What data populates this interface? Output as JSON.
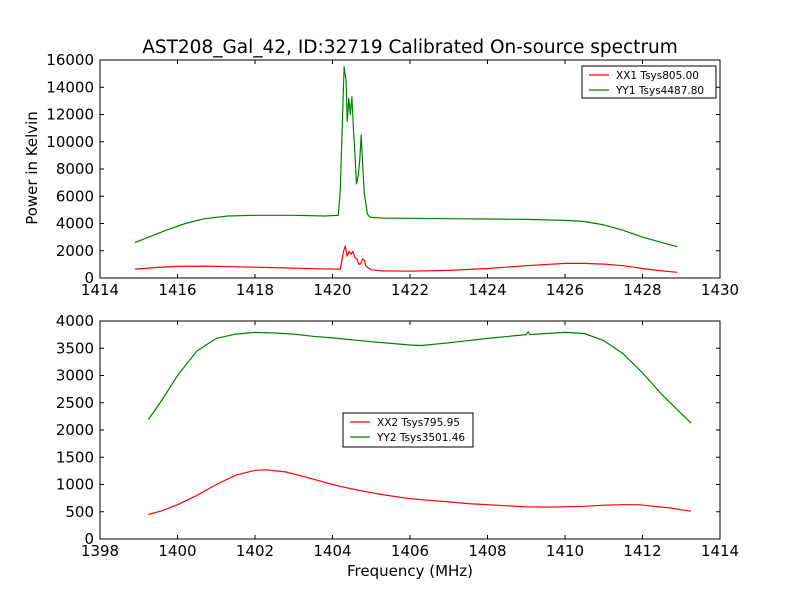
{
  "figure": {
    "title": "AST208_Gal_42, ID:32719 Calibrated On-source spectrum",
    "ylabel": "Power in Kelvin",
    "xlabel": "Frequency (MHz)"
  },
  "chart_data": [
    {
      "type": "line",
      "title": "AST208_Gal_42, ID:32719 Calibrated On-source spectrum",
      "xlabel": "",
      "ylabel": "Power in Kelvin",
      "xlim": [
        1414,
        1430
      ],
      "ylim": [
        0,
        16000
      ],
      "xticks": [
        "1414",
        "1416",
        "1418",
        "1420",
        "1422",
        "1424",
        "1426",
        "1428",
        "1430"
      ],
      "yticks": [
        "0",
        "2000",
        "4000",
        "6000",
        "8000",
        "10000",
        "12000",
        "14000",
        "16000"
      ],
      "grid": false,
      "legend_position": "top-right",
      "series": [
        {
          "name": "XX1 Tsys805.00",
          "color": "#ff0000",
          "x": [
            1414.9,
            1415.5,
            1416.0,
            1416.7,
            1417.5,
            1418.5,
            1419.5,
            1420.2,
            1420.28,
            1420.33,
            1420.38,
            1420.43,
            1420.48,
            1420.53,
            1420.58,
            1420.63,
            1420.68,
            1420.73,
            1420.78,
            1420.82,
            1420.86,
            1420.92,
            1421.0,
            1421.3,
            1422.0,
            1423.0,
            1424.0,
            1425.0,
            1426.0,
            1426.5,
            1427.0,
            1427.5,
            1428.0,
            1428.5,
            1428.9
          ],
          "y": [
            650,
            780,
            850,
            870,
            820,
            760,
            680,
            650,
            1900,
            2350,
            1600,
            1950,
            1750,
            1950,
            1500,
            1400,
            1000,
            1050,
            1400,
            1300,
            900,
            750,
            600,
            520,
            500,
            560,
            700,
            900,
            1070,
            1070,
            1020,
            900,
            700,
            520,
            420
          ]
        },
        {
          "name": "YY1 Tsys4487.80",
          "color": "#008000",
          "x": [
            1414.9,
            1415.3,
            1415.7,
            1416.2,
            1416.7,
            1417.3,
            1418.0,
            1419.0,
            1419.8,
            1420.15,
            1420.2,
            1420.25,
            1420.3,
            1420.35,
            1420.38,
            1420.42,
            1420.46,
            1420.5,
            1420.54,
            1420.58,
            1420.62,
            1420.66,
            1420.7,
            1420.74,
            1420.78,
            1420.82,
            1420.86,
            1420.9,
            1420.95,
            1421.0,
            1421.3,
            1422.0,
            1423.0,
            1424.0,
            1425.0,
            1426.0,
            1426.5,
            1427.0,
            1427.5,
            1428.0,
            1428.5,
            1428.9
          ],
          "y": [
            2600,
            3050,
            3500,
            4000,
            4350,
            4550,
            4600,
            4600,
            4550,
            4600,
            6500,
            11000,
            15500,
            14500,
            11500,
            13200,
            12000,
            13300,
            11000,
            9000,
            6900,
            7500,
            8500,
            10500,
            8300,
            6200,
            5500,
            4700,
            4500,
            4450,
            4400,
            4380,
            4350,
            4330,
            4300,
            4230,
            4150,
            3900,
            3500,
            3000,
            2600,
            2300
          ]
        }
      ]
    },
    {
      "type": "line",
      "title": "",
      "xlabel": "Frequency (MHz)",
      "ylabel": "",
      "xlim": [
        1398,
        1414
      ],
      "ylim": [
        0,
        4000
      ],
      "xticks": [
        "1398",
        "1400",
        "1402",
        "1404",
        "1406",
        "1408",
        "1410",
        "1412",
        "1414"
      ],
      "yticks": [
        "0",
        "500",
        "1000",
        "1500",
        "2000",
        "2500",
        "3000",
        "3500",
        "4000"
      ],
      "grid": false,
      "legend_position": "center",
      "series": [
        {
          "name": "XX2 Tsys795.95",
          "color": "#ff0000",
          "x": [
            1399.25,
            1399.6,
            1400.0,
            1400.5,
            1401.0,
            1401.5,
            1402.0,
            1402.3,
            1402.8,
            1403.5,
            1404.0,
            1404.5,
            1405.0,
            1405.5,
            1406.0,
            1406.5,
            1407.0,
            1407.5,
            1408.0,
            1408.5,
            1409.0,
            1409.5,
            1410.0,
            1410.5,
            1411.0,
            1411.5,
            1411.9,
            1412.3,
            1412.7,
            1413.25
          ],
          "y": [
            450,
            520,
            630,
            800,
            1000,
            1170,
            1260,
            1270,
            1230,
            1100,
            1000,
            920,
            850,
            790,
            740,
            710,
            680,
            650,
            630,
            610,
            590,
            585,
            590,
            600,
            620,
            630,
            630,
            600,
            570,
            510
          ]
        },
        {
          "name": "YY2 Tsys3501.46",
          "color": "#008000",
          "x": [
            1399.25,
            1399.6,
            1400.0,
            1400.5,
            1401.0,
            1401.5,
            1402.0,
            1402.5,
            1403.0,
            1403.5,
            1404.0,
            1405.0,
            1406.0,
            1406.3,
            1407.0,
            1408.0,
            1409.0,
            1409.05,
            1409.1,
            1409.5,
            1410.0,
            1410.5,
            1411.0,
            1411.5,
            1412.0,
            1412.5,
            1413.0,
            1413.25
          ],
          "y": [
            2190,
            2550,
            3000,
            3450,
            3680,
            3760,
            3790,
            3780,
            3760,
            3720,
            3690,
            3620,
            3560,
            3550,
            3600,
            3680,
            3750,
            3800,
            3750,
            3770,
            3790,
            3770,
            3640,
            3400,
            3050,
            2650,
            2300,
            2130
          ]
        }
      ]
    }
  ]
}
